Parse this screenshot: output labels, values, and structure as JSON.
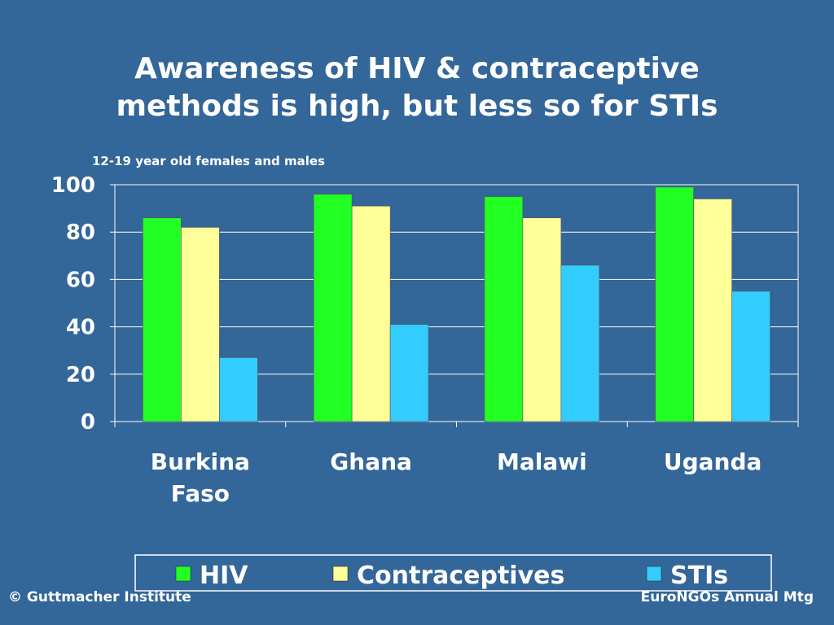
{
  "slide": {
    "title_line1": "Awareness of HIV & contraceptive",
    "title_line2": "methods is high, but less so for STIs",
    "subtitle": "12-19 year old females and males",
    "footer_left": "© Guttmacher Institute",
    "footer_right": "EuroNGOs Annual Mtg"
  },
  "chart_data": {
    "type": "bar",
    "title": "Awareness of HIV & contraceptive methods is high, but less so for STIs",
    "subtitle": "12-19 year old females and males",
    "categories": [
      [
        "Burkina",
        "Faso"
      ],
      [
        "Ghana"
      ],
      [
        "Malawi"
      ],
      [
        "Uganda"
      ]
    ],
    "series": [
      {
        "name": "HIV",
        "color": "#22ff22",
        "values": [
          86,
          96,
          95,
          99
        ]
      },
      {
        "name": "Contraceptives",
        "color": "#ffff99",
        "values": [
          82,
          91,
          86,
          94
        ]
      },
      {
        "name": "STIs",
        "color": "#33ccff",
        "values": [
          27,
          41,
          66,
          55
        ]
      }
    ],
    "ylim": [
      0,
      100
    ],
    "yticks": [
      0,
      20,
      40,
      60,
      80,
      100
    ],
    "grid": true,
    "legend": "bottom",
    "plot_background": "#336699"
  }
}
